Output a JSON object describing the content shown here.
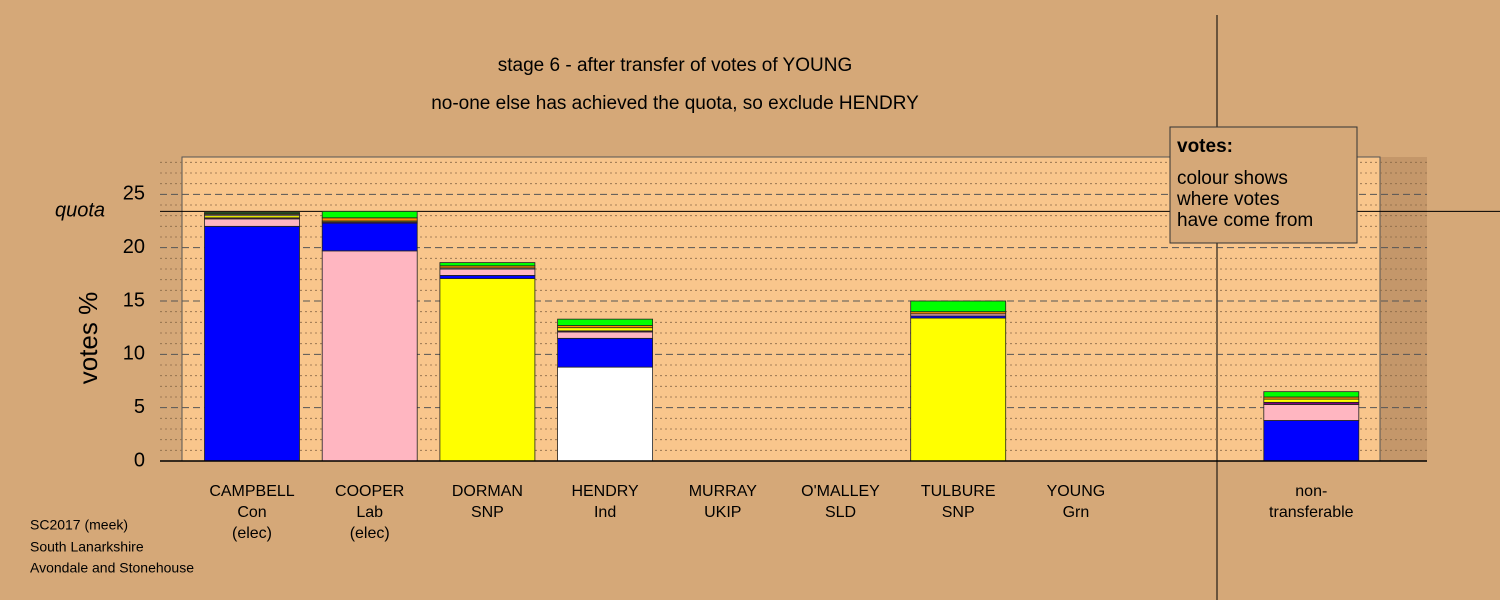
{
  "chart_data": {
    "type": "stacked-bar",
    "title": "stage 6 - after transfer of votes of YOUNG",
    "subtitle": "no-one else has achieved the quota, so exclude HENDRY",
    "ylabel": "votes %",
    "categories": [
      [
        "CAMPBELL",
        "Con",
        "(elec)"
      ],
      [
        "COOPER",
        "Lab",
        "(elec)"
      ],
      [
        "DORMAN",
        "SNP"
      ],
      [
        "HENDRY",
        "Ind"
      ],
      [
        "MURRAY",
        "UKIP"
      ],
      [
        "O'MALLEY",
        "SLD"
      ],
      [
        "TULBURE",
        "SNP"
      ],
      [
        "YOUNG",
        "Grn"
      ],
      [
        "non-",
        "transferable"
      ]
    ],
    "series": [
      {
        "colors": [
          "#0000ff",
          "#ffb6c1",
          "#ffff00",
          "#ffffff",
          "#800080",
          "#ff8c00",
          "#ffff00",
          "#00ff00",
          null
        ],
        "values": [
          22.0,
          19.7,
          17.1,
          8.8,
          0,
          0,
          13.4,
          0,
          0
        ]
      },
      {
        "color": "#0000ff",
        "values": [
          0,
          2.6,
          0.3,
          2.7,
          0,
          0,
          0.2,
          0,
          3.8
        ]
      },
      {
        "color": "#ffb6c1",
        "values": [
          0.7,
          0,
          0.6,
          0.6,
          0,
          0,
          0.2,
          0,
          1.5
        ]
      },
      {
        "color": "#800080",
        "values": [
          0.1,
          0.1,
          0,
          0.1,
          0,
          0,
          0,
          0,
          0.2
        ]
      },
      {
        "color": "#ffff00",
        "values": [
          0.2,
          0.1,
          0,
          0.3,
          0,
          0,
          0,
          0,
          0.3
        ]
      },
      {
        "color": "#ffffff",
        "values": [
          0.1,
          0,
          0.1,
          0,
          0,
          0,
          0,
          0,
          0
        ]
      },
      {
        "color": "#ff8c00",
        "values": [
          0.1,
          0.3,
          0.2,
          0.2,
          0,
          0,
          0.2,
          0,
          0.2
        ]
      },
      {
        "color": "#00ff00",
        "values": [
          0.1,
          0.6,
          0.3,
          0.6,
          0,
          0,
          1.0,
          0,
          0.5
        ]
      }
    ],
    "ylim": [
      0,
      28.5
    ],
    "yticks": [
      0,
      5,
      10,
      15,
      20,
      25
    ],
    "minor_yticks": [
      1,
      2,
      3,
      4,
      6,
      7,
      8,
      9,
      11,
      12,
      13,
      14,
      16,
      17,
      18,
      19,
      21,
      22,
      23,
      24,
      26,
      27,
      28
    ],
    "grid": true,
    "quota": {
      "value": 23.4,
      "label": "quota"
    },
    "legend": {
      "title": "votes:",
      "lines": [
        "colour shows",
        "where votes",
        "have come from"
      ]
    },
    "footer": [
      "SC2017 (meek)",
      "South Lanarkshire",
      "Avondale and Stonehouse"
    ]
  }
}
